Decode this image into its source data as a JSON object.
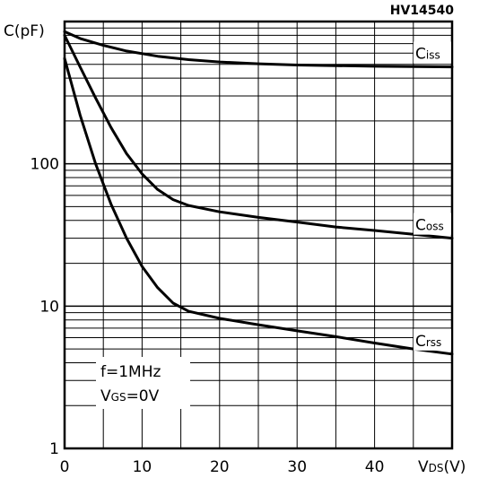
{
  "header": {
    "code": "HV14540"
  },
  "axes": {
    "ylabel": "C(pF)",
    "xlabel": "V DS(V)",
    "xlabel_main": "V",
    "xlabel_sub": "DS",
    "xlabel_unit": "(V)"
  },
  "note": {
    "line1": "f=1MHz",
    "line2_main": "V",
    "line2_sub": "GS",
    "line2_tail": "=0V"
  },
  "chart_data": {
    "type": "line",
    "title": "",
    "xlabel": "VDS(V)",
    "ylabel": "C(pF)",
    "xlim": [
      0,
      50
    ],
    "ylim": [
      1,
      1000
    ],
    "yscale": "log",
    "grid": true,
    "x_ticks": [
      "0",
      "10",
      "20",
      "30",
      "40"
    ],
    "y_ticks": [
      "1",
      "10",
      "100"
    ],
    "series": [
      {
        "name": "Ciss",
        "label_main": "C",
        "label_sub": "iss",
        "x": [
          0,
          2,
          5,
          8,
          12,
          16,
          20,
          25,
          30,
          35,
          40,
          45,
          50
        ],
        "y": [
          850,
          760,
          680,
          620,
          570,
          540,
          520,
          505,
          495,
          490,
          485,
          482,
          480
        ]
      },
      {
        "name": "Coss",
        "label_main": "C",
        "label_sub": "oss",
        "x": [
          0,
          2,
          4,
          6,
          8,
          10,
          12,
          14,
          16,
          20,
          25,
          30,
          35,
          40,
          45,
          50
        ],
        "y": [
          800,
          480,
          290,
          180,
          118,
          85,
          66,
          56,
          51,
          46,
          42,
          39,
          36,
          34,
          32,
          30
        ]
      },
      {
        "name": "Crss",
        "label_main": "C",
        "label_sub": "rss",
        "x": [
          0,
          2,
          4,
          6,
          8,
          10,
          12,
          14,
          16,
          20,
          25,
          30,
          35,
          40,
          45,
          50
        ],
        "y": [
          550,
          220,
          100,
          52,
          30,
          19,
          13.5,
          10.5,
          9.2,
          8.2,
          7.4,
          6.7,
          6.1,
          5.5,
          5.0,
          4.6
        ]
      }
    ]
  }
}
